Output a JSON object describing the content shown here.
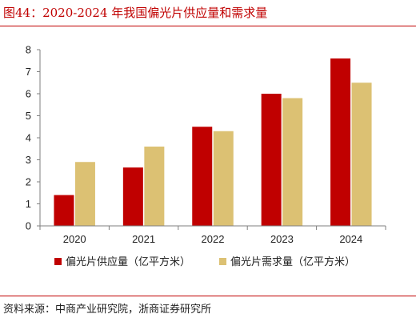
{
  "title": "图44：2020-2024 年我国偏光片供应量和需求量",
  "source": "资料来源：中商产业研究院，浙商证券研究所",
  "chart_data": {
    "type": "bar",
    "categories": [
      "2020",
      "2021",
      "2022",
      "2023",
      "2024"
    ],
    "series": [
      {
        "name": "偏光片供应量（亿平方米）",
        "color": "#c00000",
        "values": [
          1.4,
          2.65,
          4.5,
          6.0,
          7.6
        ]
      },
      {
        "name": "偏光片需求量（亿平方米）",
        "color": "#dcc173",
        "values": [
          2.9,
          3.6,
          4.3,
          5.8,
          6.5
        ]
      }
    ],
    "yticks": [
      0,
      1,
      2,
      3,
      4,
      5,
      6,
      7,
      8
    ],
    "ylim": [
      0,
      8
    ],
    "grid": false,
    "legend_position": "bottom"
  }
}
